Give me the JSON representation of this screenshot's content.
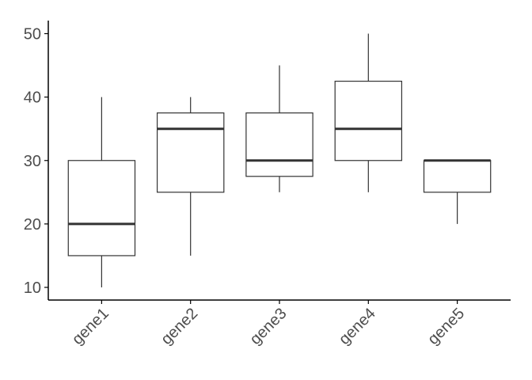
{
  "chart_data": {
    "type": "box",
    "title": "",
    "xlabel": "",
    "ylabel": "",
    "categories": [
      "gene1",
      "gene2",
      "gene3",
      "gene4",
      "gene5"
    ],
    "boxes": [
      {
        "name": "gene1",
        "min": 10,
        "q1": 15,
        "median": 20,
        "q3": 30,
        "max": 40
      },
      {
        "name": "gene2",
        "min": 15,
        "q1": 25,
        "median": 35,
        "q3": 37.5,
        "max": 40
      },
      {
        "name": "gene3",
        "min": 25,
        "q1": 27.5,
        "median": 30,
        "q3": 37.5,
        "max": 45
      },
      {
        "name": "gene4",
        "min": 25,
        "q1": 30,
        "median": 35,
        "q3": 42.5,
        "max": 50
      },
      {
        "name": "gene5",
        "min": 20,
        "q1": 25,
        "median": 30,
        "q3": 30,
        "max": 30
      }
    ],
    "yticks": [
      10,
      20,
      30,
      40,
      50
    ],
    "ylim": [
      8.5,
      52
    ],
    "grid": false,
    "colors": {
      "box_stroke": "#333333",
      "axis": "#000000",
      "tick_text": "#4d4d4d"
    }
  }
}
